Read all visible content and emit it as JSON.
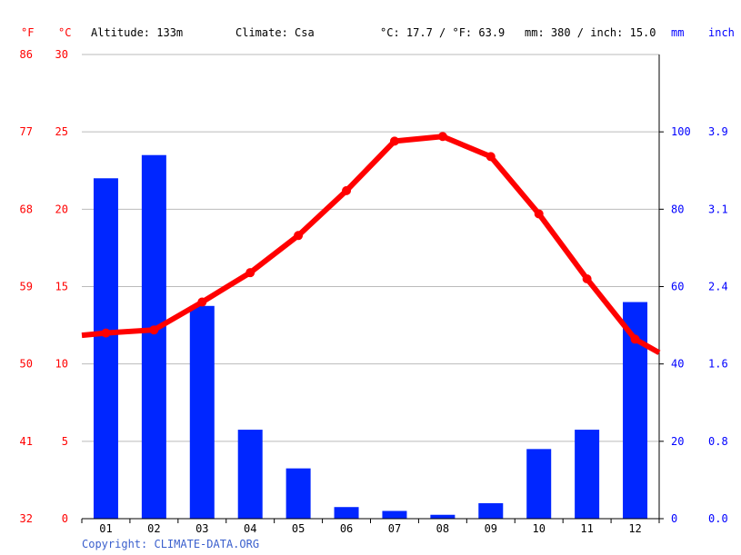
{
  "header": {
    "unit_f": "°F",
    "unit_c": "°C",
    "altitude": "Altitude: 133m",
    "climate": "Climate: Csa",
    "temperature_avg": "°C: 17.7 / °F: 63.9",
    "precipitation_total": "mm: 380 / inch: 15.0",
    "unit_mm": "mm",
    "unit_inch": "inch"
  },
  "footer": {
    "copyright": "Copyright: CLIMATE-DATA.ORG"
  },
  "colors": {
    "temperature": "#ff0000",
    "precipitation": "#0026ff",
    "grid": "#bbbbbb",
    "axis": "#000000"
  },
  "chart_data": {
    "type": "bar",
    "categories": [
      "01",
      "02",
      "03",
      "04",
      "05",
      "06",
      "07",
      "08",
      "09",
      "10",
      "11",
      "12"
    ],
    "series": [
      {
        "type": "bar",
        "axis": "right",
        "unit": "mm",
        "values": [
          88,
          94,
          55,
          23,
          13,
          3,
          2,
          1,
          4,
          18,
          23,
          56
        ]
      },
      {
        "type": "line",
        "axis": "left",
        "unit": "°C",
        "values": [
          12.0,
          12.2,
          14.0,
          15.9,
          18.3,
          21.2,
          24.4,
          24.7,
          23.4,
          19.7,
          15.5,
          11.6
        ]
      }
    ],
    "temperature_axis": {
      "c_ticks": [
        "30",
        "25",
        "20",
        "15",
        "10",
        "5",
        "0"
      ],
      "f_ticks": [
        "86",
        "77",
        "68",
        "59",
        "50",
        "41",
        "32"
      ],
      "ylim": [
        0,
        30
      ]
    },
    "precipitation_axis": {
      "mm_ticks": [
        "100",
        "80",
        "60",
        "40",
        "20",
        "0"
      ],
      "inch_ticks": [
        "3.9",
        "3.1",
        "2.4",
        "1.6",
        "0.8",
        "0.0"
      ],
      "ylim": [
        0,
        120
      ]
    },
    "grid": true
  }
}
